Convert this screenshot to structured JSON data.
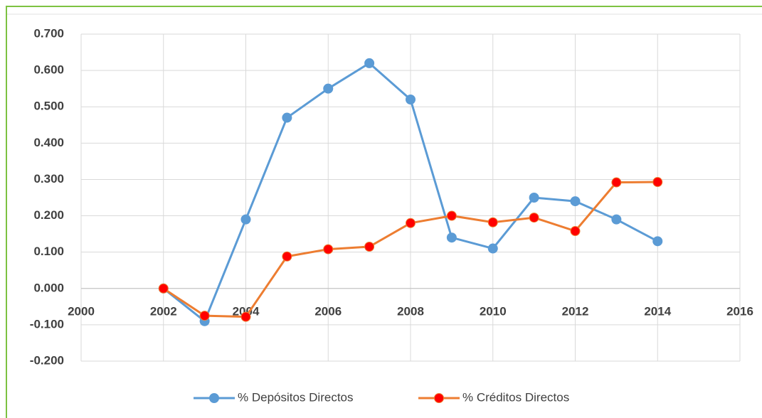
{
  "chart_data": {
    "type": "line",
    "series": [
      {
        "name": "% Depósitos Directos",
        "color": "#5b9bd5",
        "marker_color": "#5b9bd5",
        "x": [
          2002,
          2003,
          2004,
          2005,
          2006,
          2007,
          2008,
          2009,
          2010,
          2011,
          2012,
          2013,
          2014
        ],
        "values": [
          0,
          -0.09,
          0.19,
          0.47,
          0.55,
          0.62,
          0.52,
          0.14,
          0.11,
          0.25,
          0.24,
          0.19,
          0.13
        ]
      },
      {
        "name": "% Créditos Directos",
        "color": "#ed7d31",
        "marker_color": "#ff0000",
        "x": [
          2002,
          2003,
          2004,
          2005,
          2006,
          2007,
          2008,
          2009,
          2010,
          2011,
          2012,
          2013,
          2014
        ],
        "values": [
          0,
          -0.075,
          -0.078,
          0.088,
          0.108,
          0.115,
          0.18,
          0.2,
          0.182,
          0.195,
          0.158,
          0.292,
          0.293
        ]
      }
    ],
    "xlim": [
      2000,
      2016
    ],
    "xticks": [
      2000,
      2002,
      2004,
      2006,
      2008,
      2010,
      2012,
      2014,
      2016
    ],
    "ylim": [
      -0.2,
      0.7
    ],
    "yticks": [
      {
        "value": -0.2,
        "label": "-0.200"
      },
      {
        "value": -0.1,
        "label": "-0.100"
      },
      {
        "value": 0,
        "label": "0.000"
      },
      {
        "value": 0.1,
        "label": "0.100"
      },
      {
        "value": 0.2,
        "label": "0.200"
      },
      {
        "value": 0.3,
        "label": "0.300"
      },
      {
        "value": 0.4,
        "label": "0.400"
      },
      {
        "value": 0.5,
        "label": "0.500"
      },
      {
        "value": 0.6,
        "label": "0.600"
      },
      {
        "value": 0.7,
        "label": "0.700"
      }
    ],
    "grid": true,
    "legend": "bottom"
  }
}
